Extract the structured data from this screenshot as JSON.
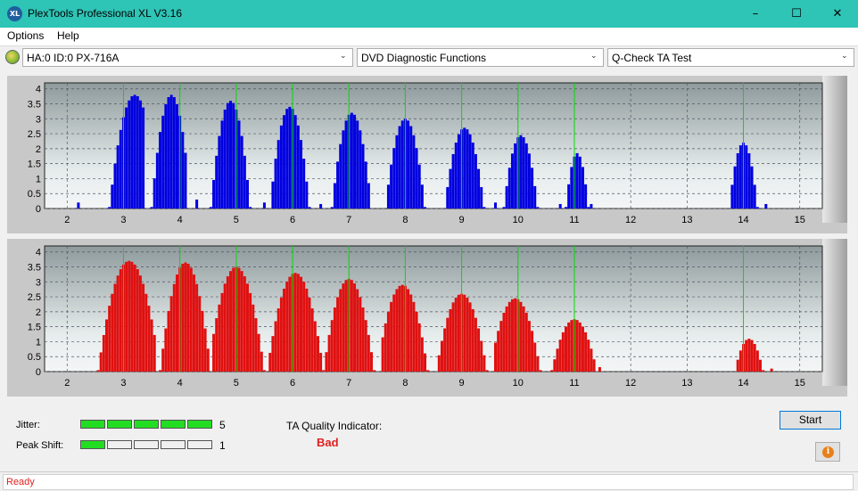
{
  "window": {
    "title": "PlexTools Professional XL V3.16",
    "icon_text": "XL"
  },
  "menu": {
    "items": [
      "Options",
      "Help"
    ]
  },
  "toolbar": {
    "drive": "HA:0 ID:0  PX-716A",
    "function": "DVD Diagnostic Functions",
    "test": "Q-Check TA Test"
  },
  "colors": {
    "title_bar": "#2ec4b6",
    "land_bars": "#0000e0",
    "pit_bars": "#e01010",
    "marker_lines": "#00e000",
    "bad_text": "#e02020"
  },
  "chart_data": [
    {
      "type": "bar",
      "name": "",
      "color": "#0000e0",
      "x_ticks": [
        2,
        3,
        4,
        5,
        6,
        7,
        8,
        9,
        10,
        11,
        12,
        13,
        14,
        15
      ],
      "y_ticks": [
        0,
        0.5,
        1,
        1.5,
        2,
        2.5,
        3,
        3.5,
        4
      ],
      "y_tick_labels": [
        "0",
        "0.5",
        "1",
        "1.5",
        "2",
        "2.5",
        "3",
        "3.5",
        "4"
      ],
      "xlim": [
        1.6,
        15.4
      ],
      "ylim": [
        0,
        4.2
      ],
      "grid": true,
      "markers": [
        3,
        4,
        5,
        6,
        7,
        8,
        9,
        10,
        11,
        14
      ],
      "peaks": [
        {
          "center": 3.2,
          "height": 3.8,
          "from": 2.75,
          "to": 3.35
        },
        {
          "center": 3.85,
          "height": 3.8,
          "from": 3.5,
          "to": 4.1
        },
        {
          "center": 4.9,
          "height": 3.6,
          "from": 4.55,
          "to": 5.25
        },
        {
          "center": 5.95,
          "height": 3.4,
          "from": 5.65,
          "to": 6.3
        },
        {
          "center": 7.05,
          "height": 3.2,
          "from": 6.7,
          "to": 7.35
        },
        {
          "center": 8.0,
          "height": 3.0,
          "from": 7.7,
          "to": 8.35
        },
        {
          "center": 9.05,
          "height": 2.7,
          "from": 8.75,
          "to": 9.4
        },
        {
          "center": 10.05,
          "height": 2.45,
          "from": 9.75,
          "to": 10.35
        },
        {
          "center": 11.05,
          "height": 1.85,
          "from": 10.85,
          "to": 11.25
        },
        {
          "center": 14.0,
          "height": 2.2,
          "from": 13.8,
          "to": 14.25
        }
      ],
      "spikes": [
        {
          "x": 2.2,
          "y": 0.2
        },
        {
          "x": 4.3,
          "y": 0.3
        },
        {
          "x": 5.5,
          "y": 0.2
        },
        {
          "x": 6.5,
          "y": 0.15
        },
        {
          "x": 9.6,
          "y": 0.2
        },
        {
          "x": 10.75,
          "y": 0.15
        },
        {
          "x": 11.3,
          "y": 0.15
        },
        {
          "x": 14.4,
          "y": 0.15
        }
      ]
    },
    {
      "type": "bar",
      "name": "",
      "color": "#e01010",
      "x_ticks": [
        2,
        3,
        4,
        5,
        6,
        7,
        8,
        9,
        10,
        11,
        12,
        13,
        14,
        15
      ],
      "y_ticks": [
        0,
        0.5,
        1,
        1.5,
        2,
        2.5,
        3,
        3.5,
        4
      ],
      "y_tick_labels": [
        "0",
        "0.5",
        "1",
        "1.5",
        "2",
        "2.5",
        "3",
        "3.5",
        "4"
      ],
      "xlim": [
        1.6,
        15.4
      ],
      "ylim": [
        0,
        4.2
      ],
      "grid": true,
      "markers": [
        3,
        4,
        5,
        6,
        7,
        8,
        9,
        10,
        11,
        14
      ],
      "peaks": [
        {
          "center": 3.1,
          "height": 3.7,
          "from": 2.55,
          "to": 3.55
        },
        {
          "center": 4.1,
          "height": 3.65,
          "from": 3.65,
          "to": 4.5
        },
        {
          "center": 5.0,
          "height": 3.5,
          "from": 4.6,
          "to": 5.5
        },
        {
          "center": 6.05,
          "height": 3.3,
          "from": 5.6,
          "to": 6.55
        },
        {
          "center": 7.0,
          "height": 3.1,
          "from": 6.6,
          "to": 7.45
        },
        {
          "center": 7.95,
          "height": 2.9,
          "from": 7.6,
          "to": 8.4
        },
        {
          "center": 9.0,
          "height": 2.6,
          "from": 8.6,
          "to": 9.45
        },
        {
          "center": 9.95,
          "height": 2.45,
          "from": 9.6,
          "to": 10.4
        },
        {
          "center": 11.0,
          "height": 1.75,
          "from": 10.6,
          "to": 11.35
        },
        {
          "center": 14.1,
          "height": 1.1,
          "from": 13.9,
          "to": 14.35
        }
      ],
      "spikes": [
        {
          "x": 11.45,
          "y": 0.15
        },
        {
          "x": 14.5,
          "y": 0.1
        }
      ]
    }
  ],
  "bottom": {
    "jitter_label": "Jitter:",
    "jitter_value": "5",
    "jitter_level": 5,
    "peak_shift_label": "Peak Shift:",
    "peak_shift_value": "1",
    "peak_shift_level": 1,
    "meter_segments": 5,
    "ta_label": "TA Quality Indicator:",
    "ta_result": "Bad",
    "start_label": "Start",
    "info_icon": "info-icon"
  },
  "status": {
    "text": "Ready"
  }
}
